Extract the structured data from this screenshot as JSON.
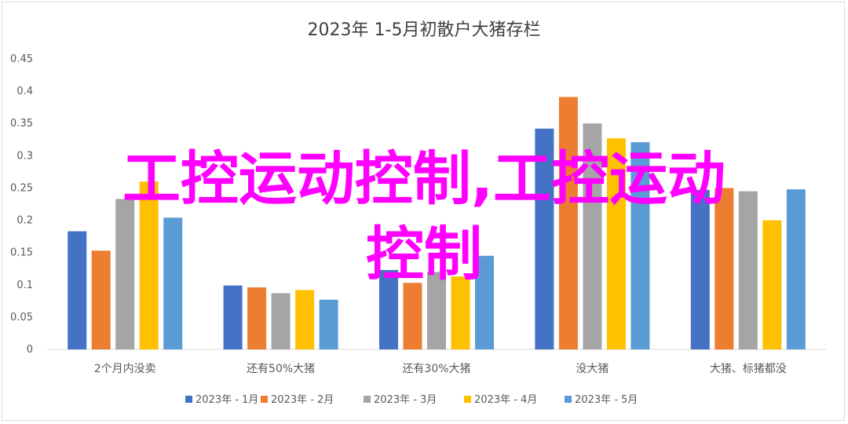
{
  "colors": {
    "s1": "#4472c4",
    "s2": "#ed7d31",
    "s3": "#a5a5a5",
    "s4": "#ffc000",
    "s5": "#5b9bd5",
    "overlay": "#ff00ff"
  },
  "chart_data": {
    "type": "bar",
    "title": "2023年 1-5月初散户大猪存栏",
    "categories": [
      "2个月内没卖",
      "还有50%大猪",
      "还有30%大猪",
      "没大猪",
      "大猪、标猪都没"
    ],
    "series": [
      {
        "name": "2023年 - 1月",
        "values": [
          0.183,
          0.099,
          0.123,
          0.342,
          0.247
        ]
      },
      {
        "name": "2023年 - 2月",
        "values": [
          0.153,
          0.096,
          0.103,
          0.391,
          0.25
        ]
      },
      {
        "name": "2023年 - 3月",
        "values": [
          0.233,
          0.087,
          0.12,
          0.35,
          0.245
        ]
      },
      {
        "name": "2023年 - 4月",
        "values": [
          0.26,
          0.092,
          0.113,
          0.327,
          0.2
        ]
      },
      {
        "name": "2023年 - 5月",
        "values": [
          0.204,
          0.077,
          0.145,
          0.321,
          0.248
        ]
      }
    ],
    "ylim": [
      0,
      0.45
    ],
    "yticks": [
      "0",
      "0.05",
      "0.1",
      "0.15",
      "0.2",
      "0.25",
      "0.3",
      "0.35",
      "0.4",
      "0.45"
    ],
    "grid": false,
    "legend": "bottom"
  },
  "overlay": {
    "line1": "工控运动控制,工控运动",
    "line2": "控制"
  }
}
